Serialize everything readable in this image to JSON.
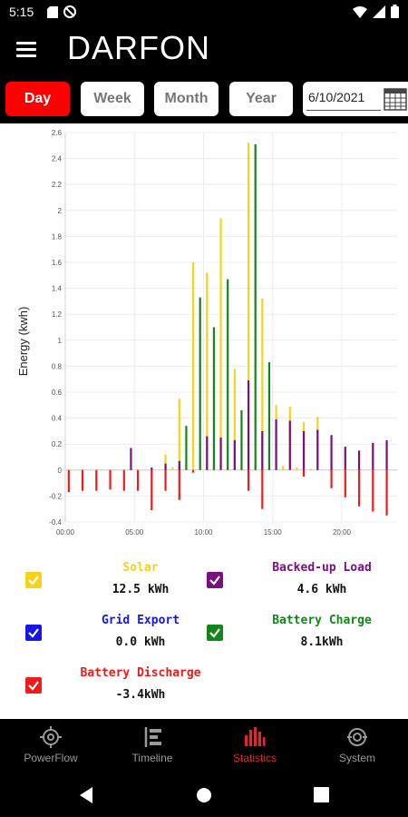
{
  "status": {
    "time": "5:15"
  },
  "header": {
    "brand": "DARFON"
  },
  "period": {
    "day": "Day",
    "week": "Week",
    "month": "Month",
    "year": "Year",
    "date": "6/10/2021"
  },
  "colors": {
    "solar": "#f5d21c",
    "backed_up_load": "#7a0f80",
    "grid_export": "#1616e6",
    "battery_charge": "#13851a",
    "battery_discharge": "#ee1b1b",
    "accent": "#ff0000"
  },
  "legend": [
    {
      "key": "solar",
      "name": "Solar",
      "value": "12.5 kWh"
    },
    {
      "key": "backed_up_load",
      "name": "Backed-up Load",
      "value": "4.6 kWh"
    },
    {
      "key": "grid_export",
      "name": "Grid Export",
      "value": "0.0 kWh"
    },
    {
      "key": "battery_charge",
      "name": "Battery Charge",
      "value": "8.1kWh"
    },
    {
      "key": "battery_discharge",
      "name": "Battery Discharge",
      "value": "-3.4kWh"
    }
  ],
  "chart_data": {
    "type": "bar",
    "ylabel": "Energy (kwh)",
    "ylim": [
      -0.4,
      2.6
    ],
    "yticks": [
      "2.6",
      "2.4",
      "2.2",
      "2",
      "1.8",
      "1.6",
      "1.4",
      "1.2",
      "1",
      "0.8",
      "0.6",
      "0.4",
      "0.2",
      "0",
      "-0.2",
      "-0.4"
    ],
    "xticks": [
      "00:00",
      "05:00",
      "10:00",
      "15:00",
      "20:00"
    ],
    "x_hours": [
      0.25,
      0.75,
      1.25,
      1.75,
      2.25,
      2.75,
      3.25,
      3.75,
      4.25,
      4.75,
      5.25,
      5.75,
      6.25,
      6.75,
      7.25,
      7.75,
      8.25,
      8.75,
      9.25,
      9.75,
      10.25,
      10.75,
      11.25,
      11.75,
      12.25,
      12.75,
      13.25,
      13.75,
      14.25,
      14.75,
      15.25,
      15.75,
      16.25,
      16.75,
      17.25,
      17.75,
      18.25,
      18.75,
      19.25,
      19.75,
      20.25,
      20.75,
      21.25,
      21.75,
      22.25,
      22.75,
      23.25,
      23.75
    ],
    "series": [
      {
        "key": "solar",
        "name": "Solar",
        "values": [
          0,
          0,
          0,
          0,
          0,
          0,
          0,
          0,
          0,
          0,
          0,
          0,
          0,
          0,
          0.12,
          0.02,
          0.55,
          0.05,
          1.6,
          0.12,
          1.52,
          0.04,
          1.94,
          0.02,
          0.78,
          0.01,
          2.52,
          0.02,
          1.32,
          0.02,
          0.5,
          0.03,
          0.49,
          0.02,
          0.37,
          0.01,
          0.41,
          0,
          0,
          0,
          0,
          0,
          0,
          0,
          0,
          0,
          0,
          0
        ]
      },
      {
        "key": "backed_up_load",
        "name": "Backed-up Load",
        "values": [
          0,
          0,
          0,
          0,
          0,
          0,
          0,
          0,
          0,
          0.17,
          0,
          0,
          0.02,
          0,
          0.05,
          0,
          0.07,
          0,
          0,
          0,
          0.26,
          0,
          0.25,
          0,
          0.23,
          0,
          0.69,
          0,
          0.3,
          0,
          0.39,
          0,
          0.38,
          0,
          0.3,
          0,
          0.31,
          0,
          0.27,
          0,
          0.18,
          0,
          0.15,
          0,
          0.21,
          0,
          0.23,
          0
        ]
      },
      {
        "key": "grid_export",
        "name": "Grid Export",
        "values": [
          0,
          0,
          0,
          0,
          0,
          0,
          0,
          0,
          0,
          0,
          0,
          0,
          0,
          0,
          0,
          0,
          0,
          0,
          0,
          0,
          0,
          0,
          0,
          0,
          0,
          0,
          0,
          0,
          0,
          0,
          0,
          0,
          0,
          0,
          0,
          0,
          0,
          0,
          0,
          0,
          0,
          0,
          0,
          0,
          0,
          0,
          0,
          0
        ]
      },
      {
        "key": "battery_charge",
        "name": "Battery Charge",
        "values": [
          0,
          0,
          0,
          0,
          0,
          0,
          0,
          0,
          0,
          0,
          0,
          0,
          0,
          0,
          0,
          0,
          0,
          0.34,
          0,
          1.33,
          0,
          1.1,
          0,
          1.47,
          0,
          0.46,
          0,
          2.51,
          0,
          0.83,
          0,
          0,
          0,
          0,
          0,
          0,
          0,
          0,
          0,
          0,
          0,
          0,
          0,
          0,
          0,
          0,
          0,
          0
        ]
      },
      {
        "key": "battery_discharge",
        "name": "Battery Discharge",
        "values": [
          -0.17,
          0,
          -0.16,
          0,
          -0.16,
          0,
          -0.15,
          0,
          -0.16,
          0,
          -0.16,
          0,
          -0.31,
          0,
          -0.16,
          0,
          -0.23,
          0,
          -0.02,
          0,
          0,
          0,
          0,
          0,
          0,
          0,
          -0.16,
          0,
          -0.3,
          0,
          0,
          0,
          0,
          0,
          -0.05,
          0,
          0,
          0,
          -0.14,
          0,
          -0.21,
          0,
          -0.28,
          0,
          -0.32,
          0,
          -0.35,
          0
        ]
      }
    ]
  },
  "nav": [
    {
      "key": "powerflow",
      "label": "PowerFlow"
    },
    {
      "key": "timeline",
      "label": "Timeline"
    },
    {
      "key": "statistics",
      "label": "Statistics"
    },
    {
      "key": "system",
      "label": "System"
    }
  ]
}
